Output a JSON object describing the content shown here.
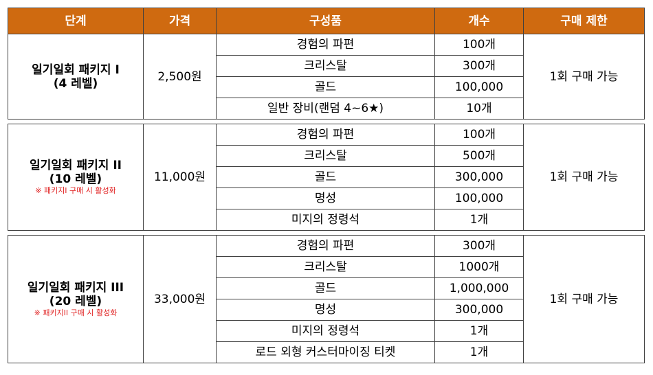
{
  "headers": [
    "단계",
    "가격",
    "구성품",
    "개수",
    "구매 제한"
  ],
  "packages": [
    {
      "name": "일기일회 패키지 I",
      "level": "(4 레벨)",
      "note": "",
      "price": "2,500원",
      "limit": "1회 구매 가능",
      "items": [
        {
          "name": "경험의 파편",
          "count": "100개"
        },
        {
          "name": "크리스탈",
          "count": "300개"
        },
        {
          "name": "골드",
          "count": "100,000"
        },
        {
          "name": "일반 장비(랜덤 4~6★)",
          "count": "10개"
        }
      ]
    },
    {
      "name": "일기일회 패키지 II",
      "level": "(10 레벨)",
      "note": "※ 패키지I 구매 시 활성화",
      "price": "11,000원",
      "limit": "1회 구매 가능",
      "items": [
        {
          "name": "경험의 파편",
          "count": "100개"
        },
        {
          "name": "크리스탈",
          "count": "500개"
        },
        {
          "name": "골드",
          "count": "300,000"
        },
        {
          "name": "명성",
          "count": "100,000"
        },
        {
          "name": "미지의 정령석",
          "count": "1개"
        }
      ]
    },
    {
      "name": "일기일회 패키지 III",
      "level": "(20 레벨)",
      "note": "※ 패키지II 구매 시 활성화",
      "price": "33,000원",
      "limit": "1회 구매 가능",
      "items": [
        {
          "name": "경험의 파편",
          "count": "300개"
        },
        {
          "name": "크리스탈",
          "count": "1000개"
        },
        {
          "name": "골드",
          "count": "1,000,000"
        },
        {
          "name": "명성",
          "count": "300,000"
        },
        {
          "name": "미지의 정령석",
          "count": "1개"
        },
        {
          "name": "로드 외형 커스터마이징 티켓",
          "count": "1개"
        }
      ]
    }
  ],
  "colors": {
    "header_bg": "#cf6a10",
    "header_text": "#ffffff",
    "note": "#e02020"
  }
}
